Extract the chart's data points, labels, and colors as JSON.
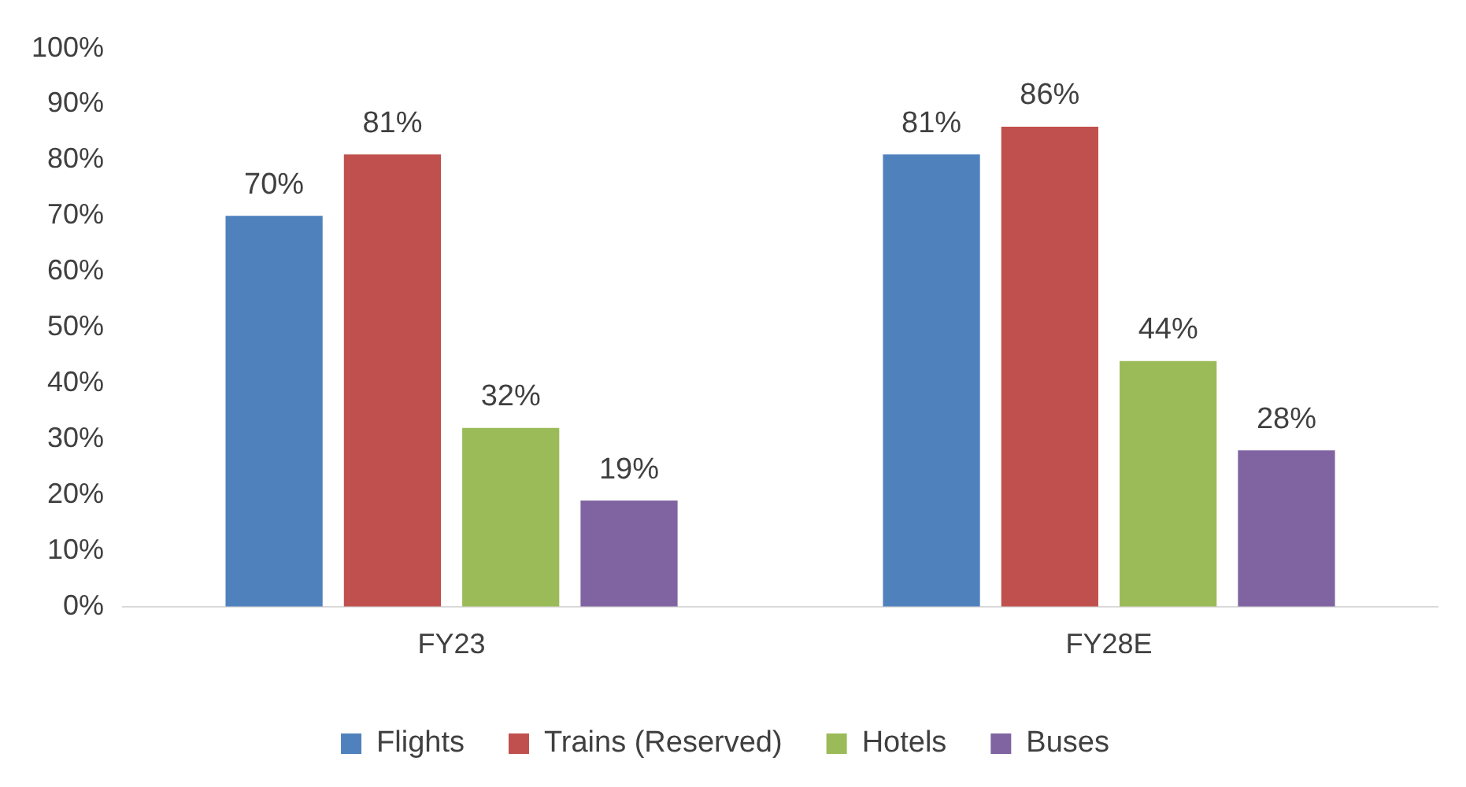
{
  "chart_data": {
    "type": "bar",
    "categories": [
      "FY23",
      "FY28E"
    ],
    "series": [
      {
        "name": "Flights",
        "color": "#4f81bd",
        "values": [
          70,
          81
        ],
        "value_labels": [
          "70%",
          "81%"
        ]
      },
      {
        "name": "Trains (Reserved)",
        "color": "#c0504d",
        "values": [
          81,
          86
        ],
        "value_labels": [
          "81%",
          "86%"
        ]
      },
      {
        "name": "Hotels",
        "color": "#9bbb59",
        "values": [
          32,
          44
        ],
        "value_labels": [
          "32%",
          "44%"
        ]
      },
      {
        "name": "Buses",
        "color": "#8064a2",
        "values": [
          19,
          28
        ],
        "value_labels": [
          "19%",
          "28%"
        ]
      }
    ],
    "ylim": [
      0,
      100
    ],
    "yticks": [
      {
        "value": 0,
        "label": "0%"
      },
      {
        "value": 10,
        "label": "10%"
      },
      {
        "value": 20,
        "label": "20%"
      },
      {
        "value": 30,
        "label": "30%"
      },
      {
        "value": 40,
        "label": "40%"
      },
      {
        "value": 50,
        "label": "50%"
      },
      {
        "value": 60,
        "label": "60%"
      },
      {
        "value": 70,
        "label": "70%"
      },
      {
        "value": 80,
        "label": "80%"
      },
      {
        "value": 90,
        "label": "90%"
      },
      {
        "value": 100,
        "label": "100%"
      }
    ],
    "grid": false,
    "legend": "bottom"
  }
}
